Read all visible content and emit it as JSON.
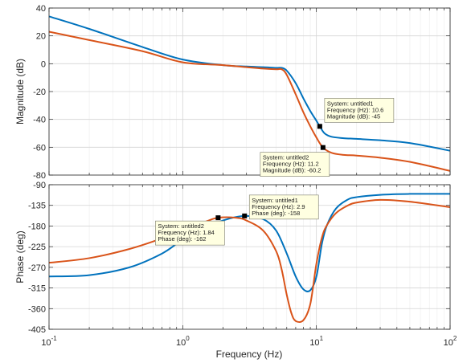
{
  "chart_data": [
    {
      "type": "line",
      "panel": "magnitude",
      "ylabel": "Magnitude (dB)",
      "xscale": "log",
      "xlim": [
        0.1,
        100
      ],
      "ylim": [
        -80,
        40
      ],
      "yticks": [
        40,
        20,
        0,
        -20,
        -40,
        -60,
        -80
      ],
      "grid": true,
      "series": [
        {
          "name": "untitled1",
          "color": "#0072BD",
          "x": [
            0.1,
            0.2,
            0.5,
            1,
            2,
            3,
            4,
            5,
            5.5,
            6,
            7,
            8,
            9,
            10,
            10.6,
            11.5,
            13,
            16,
            20,
            30,
            50,
            100
          ],
          "y": [
            34,
            25,
            12,
            3,
            -1,
            -2,
            -2.5,
            -3,
            -3,
            -5,
            -14,
            -25,
            -34,
            -41,
            -45,
            -50,
            -52.5,
            -53.5,
            -54,
            -55,
            -57,
            -62.5
          ]
        },
        {
          "name": "untitled2",
          "color": "#D95319",
          "x": [
            0.1,
            0.2,
            0.5,
            1,
            2,
            3,
            4,
            5,
            5.5,
            6,
            7,
            8,
            9,
            10,
            11.2,
            13,
            16,
            20,
            30,
            50,
            100
          ],
          "y": [
            23,
            17,
            9,
            1,
            -1,
            -2.5,
            -3.5,
            -4,
            -4,
            -8,
            -22,
            -35,
            -45,
            -53,
            -60.2,
            -64,
            -65.5,
            -66,
            -67.5,
            -70.5,
            -77
          ]
        }
      ],
      "datatips": [
        {
          "series": "untitled1",
          "x": 10.6,
          "y": -45,
          "lines": [
            "System: untitled1",
            "Frequency (Hz): 10.6",
            "Magnitude (dB): -45"
          ]
        },
        {
          "series": "untitled2",
          "x": 11.2,
          "y": -60.2,
          "lines": [
            "System: untitled2",
            "Frequency (Hz): 11.2",
            "Magnitude (dB): -60.2"
          ]
        }
      ]
    },
    {
      "type": "line",
      "panel": "phase",
      "ylabel": "Phase (deg)",
      "xlabel": "Frequency  (Hz)",
      "xscale": "log",
      "xlim": [
        0.1,
        100
      ],
      "ylim": [
        -405,
        -90
      ],
      "yticks": [
        -90,
        -135,
        -180,
        -225,
        -270,
        -315,
        -360,
        -405
      ],
      "xticks": [
        0.1,
        1,
        10,
        100
      ],
      "xtick_labels": [
        {
          "base": "10",
          "exp": "-1"
        },
        {
          "base": "10",
          "exp": "0"
        },
        {
          "base": "10",
          "exp": "1"
        },
        {
          "base": "10",
          "exp": "2"
        }
      ],
      "grid": true,
      "series": [
        {
          "name": "untitled1",
          "color": "#0072BD",
          "x": [
            0.1,
            0.2,
            0.4,
            0.7,
            1,
            1.5,
            2,
            2.9,
            4,
            5,
            6,
            7,
            8,
            9,
            10,
            11,
            12,
            14,
            17,
            20,
            30,
            50,
            100
          ],
          "y": [
            -290,
            -287,
            -270,
            -240,
            -210,
            -185,
            -168,
            -158,
            -165,
            -190,
            -240,
            -290,
            -318,
            -320,
            -290,
            -218,
            -178,
            -142,
            -123,
            -117,
            -112,
            -110,
            -110
          ]
        },
        {
          "name": "untitled2",
          "color": "#D95319",
          "x": [
            0.1,
            0.2,
            0.4,
            0.7,
            1,
            1.5,
            1.84,
            2.5,
            3,
            4,
            5,
            5.5,
            6,
            6.5,
            7,
            8,
            9,
            10,
            11,
            12,
            14,
            17,
            20,
            30,
            50,
            100
          ],
          "y": [
            -260,
            -250,
            -230,
            -207,
            -190,
            -170,
            -162,
            -162,
            -168,
            -190,
            -235,
            -275,
            -330,
            -370,
            -387,
            -385,
            -350,
            -262,
            -205,
            -178,
            -152,
            -136,
            -129,
            -123,
            -127,
            -139
          ]
        }
      ],
      "datatips": [
        {
          "series": "untitled1",
          "x": 2.9,
          "y": -158,
          "lines": [
            "System: untitled1",
            "Frequency (Hz): 2.9",
            "Phase (deg): -158"
          ]
        },
        {
          "series": "untitled2",
          "x": 1.84,
          "y": -162,
          "lines": [
            "System: untitled2",
            "Frequency (Hz): 1.84",
            "Phase (deg): -162"
          ]
        }
      ]
    }
  ]
}
